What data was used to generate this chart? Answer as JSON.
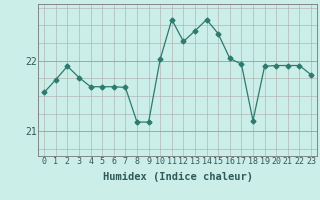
{
  "x": [
    0,
    1,
    2,
    3,
    4,
    5,
    6,
    7,
    8,
    9,
    10,
    11,
    12,
    13,
    14,
    15,
    16,
    17,
    18,
    19,
    20,
    21,
    22,
    23
  ],
  "y": [
    21.55,
    21.73,
    21.92,
    21.76,
    21.63,
    21.63,
    21.63,
    21.62,
    21.13,
    21.13,
    22.02,
    22.58,
    22.27,
    22.42,
    22.58,
    22.38,
    22.03,
    21.95,
    21.15,
    21.92,
    21.93,
    21.93,
    21.93,
    21.8
  ],
  "line_color": "#2d7a6e",
  "marker": "D",
  "marker_size": 2.5,
  "bg_color": "#cceee8",
  "grid_color_x": "#aaaaaa",
  "grid_color_y_major": "#cc8888",
  "grid_color_y_minor": "#aaaaaa",
  "xlabel": "Humidex (Indice chaleur)",
  "yticks": [
    21,
    22
  ],
  "ylim": [
    20.65,
    22.8
  ],
  "xlim": [
    -0.5,
    23.5
  ],
  "xlabel_fontsize": 7.5,
  "tick_fontsize": 7
}
